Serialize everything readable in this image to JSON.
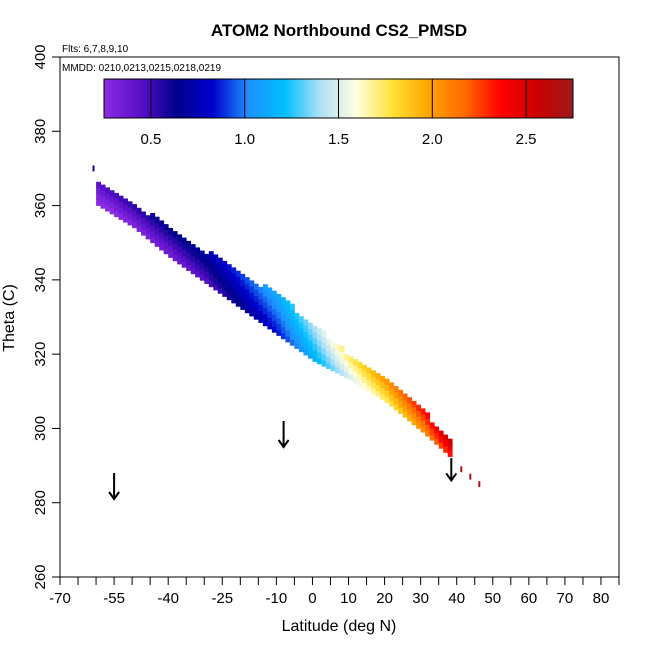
{
  "chart_data": {
    "type": "scatter",
    "title": "ATOM2 Northbound CS2_PMSD",
    "subtitle_flights": "Flts: 6,7,8,9,10",
    "subtitle_dates": "MMDD: 0210,0213,0215,0218,0219",
    "xlabel": "Latitude (deg N)",
    "ylabel": "Theta (C)",
    "xlim": [
      -70,
      85
    ],
    "ylim": [
      260,
      400
    ],
    "x_major_ticks": [
      -70,
      -55,
      -40,
      -25,
      -10,
      0,
      10,
      20,
      30,
      40,
      50,
      60,
      70,
      80
    ],
    "x_minor_ticks": [
      -65,
      -60,
      -50,
      -45,
      -35,
      -30,
      -20,
      -15,
      -5,
      5,
      15,
      25,
      35,
      45,
      55,
      65,
      75,
      85
    ],
    "y_major_ticks": [
      260,
      280,
      300,
      320,
      340,
      360,
      380,
      400
    ],
    "colorbar": {
      "range": [
        0.25,
        2.75
      ],
      "tick_values": [
        0.5,
        1.0,
        1.5,
        2.0,
        2.5
      ],
      "tick_labels": [
        "0.5",
        "1.0",
        "1.5",
        "2.0",
        "2.5"
      ],
      "colors": [
        "#8a2be2",
        "#5a10c8",
        "#00008b",
        "#0000cd",
        "#1e90ff",
        "#00bfff",
        "#b0e0f8",
        "#ffffe0",
        "#ffe135",
        "#ffa500",
        "#ff6a00",
        "#ff0000",
        "#cc0000",
        "#9b1b1b"
      ]
    },
    "band": [
      {
        "lat": -60,
        "theta_top": 366,
        "theta_bottom": 360
      },
      {
        "lat": -50,
        "theta_top": 360,
        "theta_bottom": 354
      },
      {
        "lat": -40,
        "theta_top": 353,
        "theta_bottom": 346
      },
      {
        "lat": -30,
        "theta_top": 347,
        "theta_bottom": 339
      },
      {
        "lat": -20,
        "theta_top": 341,
        "theta_bottom": 332
      },
      {
        "lat": -10,
        "theta_top": 335,
        "theta_bottom": 325
      },
      {
        "lat": 0,
        "theta_top": 327,
        "theta_bottom": 318
      },
      {
        "lat": 10,
        "theta_top": 319,
        "theta_bottom": 313
      },
      {
        "lat": 20,
        "theta_top": 312,
        "theta_bottom": 307
      },
      {
        "lat": 30,
        "theta_top": 304,
        "theta_bottom": 299
      },
      {
        "lat": 38,
        "theta_top": 296,
        "theta_bottom": 292
      }
    ],
    "value_profile": [
      {
        "lat": -60,
        "value": 0.35
      },
      {
        "lat": -50,
        "value": 0.45
      },
      {
        "lat": -40,
        "value": 0.5
      },
      {
        "lat": -30,
        "value": 0.6
      },
      {
        "lat": -20,
        "value": 0.8
      },
      {
        "lat": -10,
        "value": 1.0
      },
      {
        "lat": 0,
        "value": 1.3
      },
      {
        "lat": 10,
        "value": 1.65
      },
      {
        "lat": 20,
        "value": 1.9
      },
      {
        "lat": 30,
        "value": 2.2
      },
      {
        "lat": 38,
        "value": 2.5
      },
      {
        "lat": 48,
        "value": 2.7
      }
    ],
    "isolated_points": [
      {
        "lat": -61,
        "theta": 370,
        "value": 0.6
      },
      {
        "lat": 41,
        "theta": 289,
        "value": 2.7
      },
      {
        "lat": 43.5,
        "theta": 287,
        "value": 2.7
      },
      {
        "lat": 46,
        "theta": 285,
        "value": 2.7
      }
    ],
    "arrows": [
      {
        "lat": -55,
        "theta_start": 288,
        "theta_end": 281
      },
      {
        "lat": -8,
        "theta_start": 302,
        "theta_end": 295
      },
      {
        "lat": 38.5,
        "theta_start": 292,
        "theta_end": 286
      }
    ]
  }
}
